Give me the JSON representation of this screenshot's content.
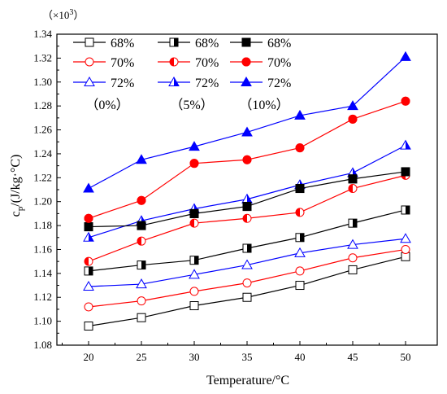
{
  "chart_data": {
    "type": "line",
    "multiplier_label": "（×10",
    "multiplier_exp": "3",
    "multiplier_close": "）",
    "xlabel": "Temperature/°C",
    "ylabel": "cp/(J/kg·°C)",
    "ylabel_parts": {
      "base": "c",
      "sub": "p",
      "rest": "/(J/kg·°C)"
    },
    "x": [
      20,
      25,
      30,
      35,
      40,
      45,
      50
    ],
    "xlim": [
      17,
      53
    ],
    "ylim": [
      1.08,
      1.34
    ],
    "x_ticks": [
      "20",
      "25",
      "30",
      "35",
      "40",
      "45",
      "50"
    ],
    "y_ticks": [
      "1.08",
      "1.10",
      "1.12",
      "1.14",
      "1.16",
      "1.18",
      "1.20",
      "1.22",
      "1.24",
      "1.26",
      "1.28",
      "1.30",
      "1.32",
      "1.34"
    ],
    "legend_groups": [
      "（0%）",
      "（5%）",
      "（10%）"
    ],
    "series": [
      {
        "name": "68%",
        "color": "#000000",
        "marker": "square",
        "fill": "empty",
        "group": "0%",
        "values": [
          1.096,
          1.103,
          1.113,
          1.12,
          1.13,
          1.143,
          1.154
        ]
      },
      {
        "name": "70%",
        "color": "#ff0000",
        "marker": "circle",
        "fill": "empty",
        "group": "0%",
        "values": [
          1.112,
          1.117,
          1.125,
          1.132,
          1.142,
          1.153,
          1.16
        ]
      },
      {
        "name": "72%",
        "color": "#0000ff",
        "marker": "triangle",
        "fill": "empty",
        "group": "0%",
        "values": [
          1.129,
          1.131,
          1.139,
          1.147,
          1.157,
          1.164,
          1.169
        ]
      },
      {
        "name": "68%",
        "color": "#000000",
        "marker": "square",
        "fill": "half",
        "group": "5%",
        "values": [
          1.142,
          1.147,
          1.151,
          1.161,
          1.17,
          1.182,
          1.193
        ]
      },
      {
        "name": "70%",
        "color": "#ff0000",
        "marker": "circle",
        "fill": "half",
        "group": "5%",
        "values": [
          1.15,
          1.167,
          1.182,
          1.186,
          1.191,
          1.211,
          1.222
        ]
      },
      {
        "name": "72%",
        "color": "#0000ff",
        "marker": "triangle",
        "fill": "half",
        "group": "5%",
        "values": [
          1.17,
          1.184,
          1.194,
          1.202,
          1.214,
          1.224,
          1.247
        ]
      },
      {
        "name": "68%",
        "color": "#000000",
        "marker": "square",
        "fill": "full",
        "group": "10%",
        "values": [
          1.179,
          1.18,
          1.19,
          1.196,
          1.211,
          1.219,
          1.225
        ]
      },
      {
        "name": "70%",
        "color": "#ff0000",
        "marker": "circle",
        "fill": "full",
        "group": "10%",
        "values": [
          1.186,
          1.201,
          1.232,
          1.235,
          1.245,
          1.269,
          1.284
        ]
      },
      {
        "name": "72%",
        "color": "#0000ff",
        "marker": "triangle",
        "fill": "full",
        "group": "10%",
        "values": [
          1.211,
          1.235,
          1.246,
          1.258,
          1.272,
          1.28,
          1.321
        ]
      }
    ],
    "grid": false,
    "legend_position": "top-left"
  }
}
